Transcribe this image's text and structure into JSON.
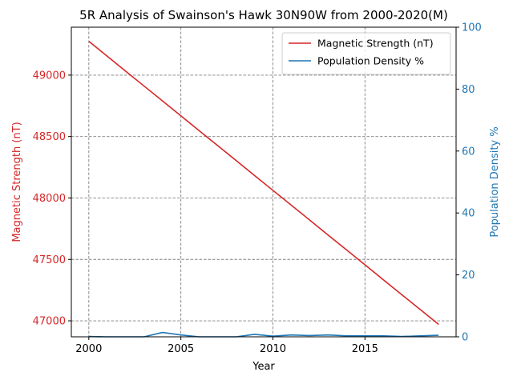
{
  "chart_data": {
    "type": "line",
    "title": "5R Analysis of Swainson's Hawk 30N90W from 2000-2020(M)",
    "xlabel": "Year",
    "ylabel_left": "Magnetic Strength (nT)",
    "ylabel_right": "Population Density %",
    "x_ticks": [
      "2000",
      "2005",
      "2010",
      "2015"
    ],
    "y_left_ticks": [
      "47000",
      "47500",
      "48000",
      "48500",
      "49000"
    ],
    "y_right_ticks": [
      "0",
      "20",
      "40",
      "60",
      "80",
      "100"
    ],
    "xlim": [
      1999.05,
      2019.95
    ],
    "ylim_left": [
      46870,
      49390
    ],
    "ylim_right": [
      0,
      100
    ],
    "grid": true,
    "legend_position": "upper right",
    "colors": {
      "left": "#d62728",
      "right": "#1f77b4",
      "grid": "#808080"
    },
    "x": [
      2000,
      2001,
      2002,
      2003,
      2004,
      2005,
      2006,
      2007,
      2008,
      2009,
      2010,
      2011,
      2012,
      2013,
      2014,
      2015,
      2016,
      2017,
      2018,
      2019
    ],
    "series": [
      {
        "name": "Magnetic Strength (nT)",
        "axis": "left",
        "values": [
          49275,
          49154,
          49032,
          48911,
          48790,
          48669,
          48547,
          48426,
          48305,
          48183,
          48062,
          47941,
          47820,
          47698,
          47577,
          47456,
          47334,
          47213,
          47092,
          46971
        ]
      },
      {
        "name": "Population Density %",
        "axis": "right",
        "values": [
          0.1,
          0.0,
          0.0,
          0.0,
          1.4,
          0.6,
          0.0,
          0.0,
          0.0,
          0.8,
          0.2,
          0.6,
          0.4,
          0.6,
          0.3,
          0.3,
          0.3,
          0.1,
          0.3,
          0.5
        ]
      }
    ]
  }
}
